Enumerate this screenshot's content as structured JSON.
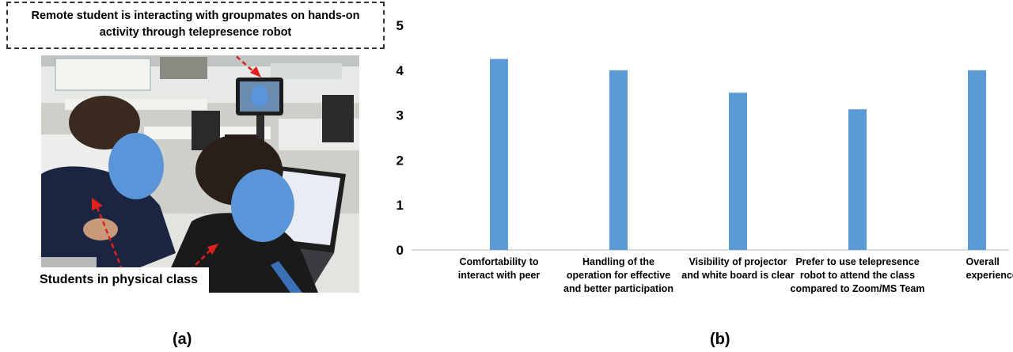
{
  "panel_a": {
    "callout_lines": [
      "Remote student is interacting with groupmates on hands-on",
      "activity through telepresence robot"
    ],
    "students_label": "Students in physical class",
    "label": "(a)"
  },
  "panel_b": {
    "label": "(b)"
  },
  "chart_data": {
    "type": "bar",
    "categories": [
      [
        "Comfortability to",
        "interact with peer"
      ],
      [
        "Handling of the",
        "operation for effective",
        "and better participation"
      ],
      [
        "Visibility of projector",
        "and white board is clear"
      ],
      [
        "Prefer to use telepresence",
        "robot to attend the class",
        "compared to Zoom/MS Team"
      ],
      [
        "Overall",
        "experience"
      ]
    ],
    "values": [
      4.25,
      4.0,
      3.5,
      3.13,
      4.0
    ],
    "ylim": [
      0,
      5
    ],
    "yticks": [
      "0",
      "1",
      "2",
      "3",
      "4",
      "5"
    ],
    "bar_color": "#5b9bd5",
    "grid": false
  }
}
